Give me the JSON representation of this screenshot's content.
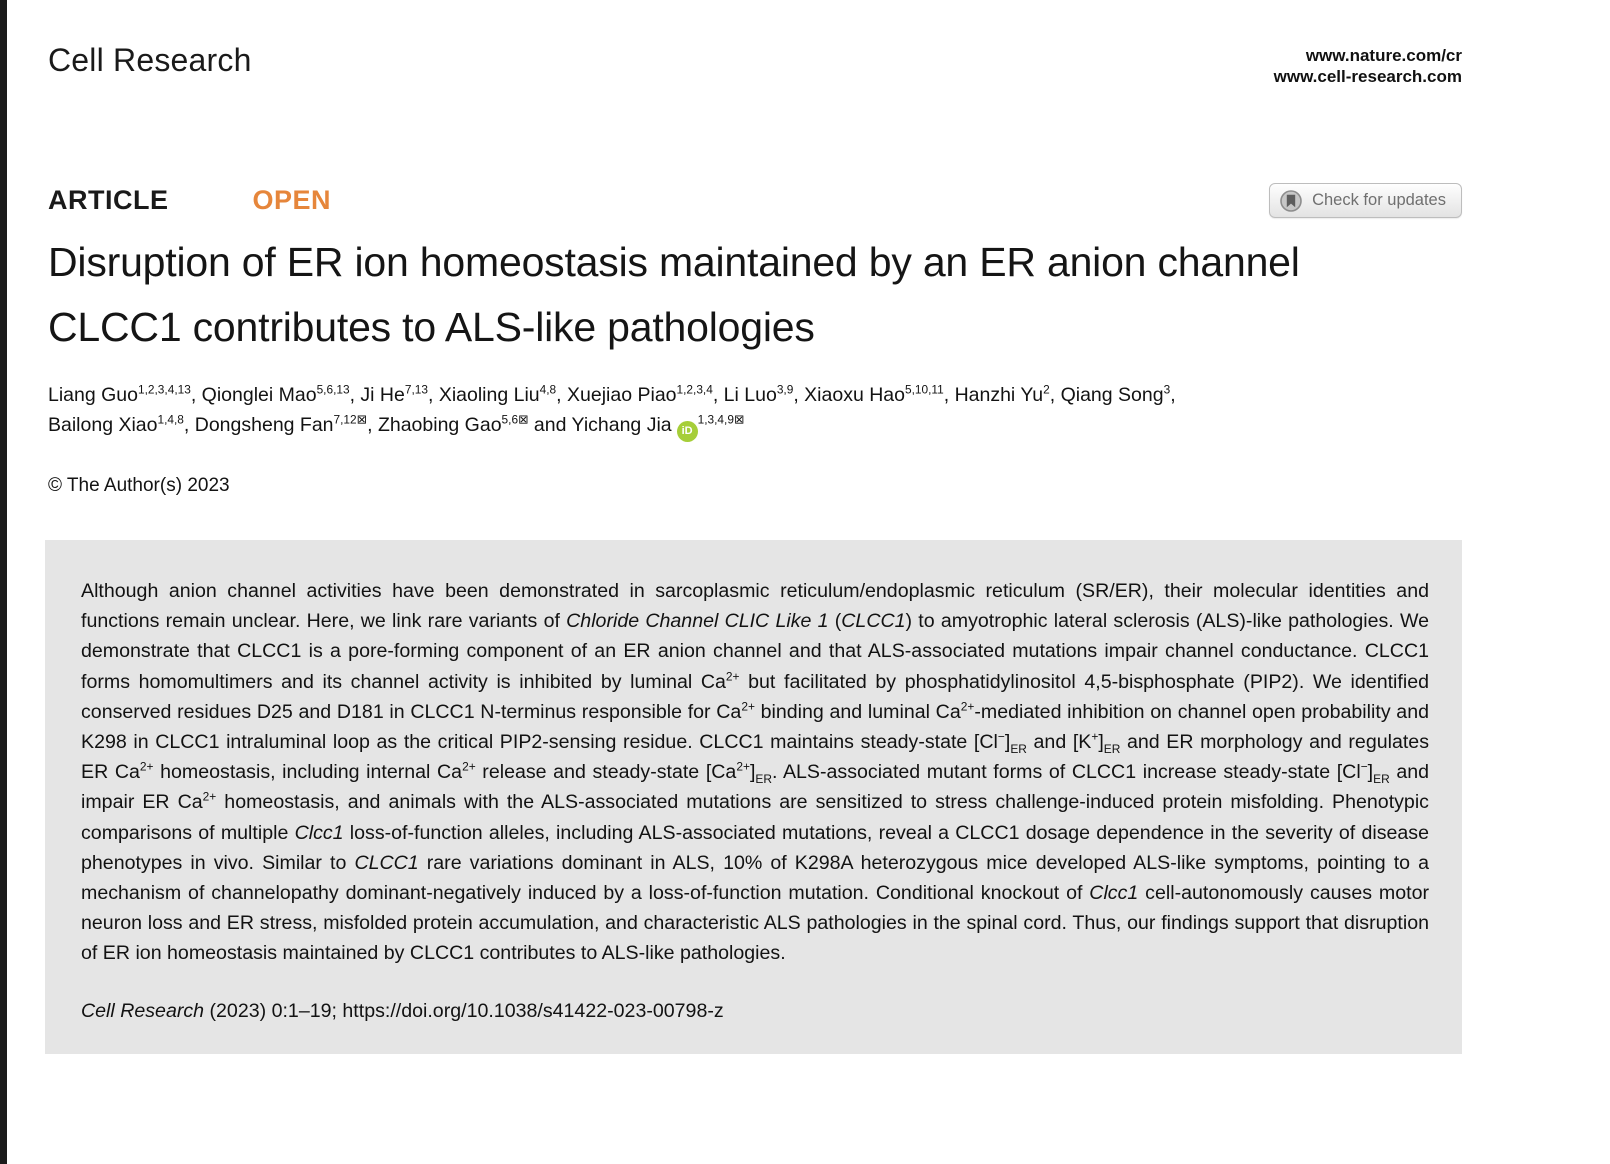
{
  "masthead": {
    "journal": "Cell Research",
    "url_nature": "www.nature.com/cr",
    "url_journal": "www.cell-research.com"
  },
  "labels": {
    "article": "ARTICLE",
    "open": "OPEN",
    "check_updates": "Check for updates"
  },
  "article": {
    "title": "Disruption of ER ion homeostasis maintained by an ER anion channel CLCC1 contributes to ALS-like pathologies",
    "authors_line1": "Liang Guo{sup}1,2,3,4,13{/sup}, Qionglei Mao{sup}5,6,13{/sup}, Ji He{sup}7,13{/sup}, Xiaoling Liu{sup}4,8{/sup}, Xuejiao Piao{sup}1,2,3,4{/sup}, Li Luo{sup}3,9{/sup}, Xiaoxu Hao{sup}5,10,11{/sup}, Hanzhi Yu{sup}2{/sup}, Qiang Song{sup}3{/sup},",
    "authors_line2": "Bailong Xiao{sup}1,4,8{/sup}, Dongsheng Fan{sup}7,12{env}{/sup}, Zhaobing Gao{sup}5,6{env}{/sup} and Yichang Jia{orcid}{sup}1,3,4,9{env}{/sup}",
    "copyright": "© The Author(s) 2023"
  },
  "abstract": {
    "text": "Although anion channel activities have been demonstrated in sarcoplasmic reticulum/endoplasmic reticulum (SR/ER), their molecular identities and functions remain unclear. Here, we link rare variants of {i}Chloride Channel CLIC Like 1{/i} ({i}CLCC1{/i}) to amyotrophic lateral sclerosis (ALS)-like pathologies. We demonstrate that CLCC1 is a pore-forming component of an ER anion channel and that ALS-associated mutations impair channel conductance. CLCC1 forms homomultimers and its channel activity is inhibited by luminal Ca{sup}2+{/sup} but facilitated by phosphatidylinositol 4,5-bisphosphate (PIP2). We identified conserved residues D25 and D181 in CLCC1 N-terminus responsible for Ca{sup}2+{/sup} binding and luminal Ca{sup}2+{/sup}-mediated inhibition on channel open probability and K298 in CLCC1 intraluminal loop as the critical PIP2-sensing residue. CLCC1 maintains steady-state [Cl{sup}−{/sup}]{sub}ER{/sub} and [K{sup}+{/sup}]{sub}ER{/sub} and ER morphology and regulates ER Ca{sup}2+{/sup} homeostasis, including internal Ca{sup}2+{/sup} release and steady-state [Ca{sup}2+{/sup}]{sub}ER{/sub}. ALS-associated mutant forms of CLCC1 increase steady-state [Cl{sup}−{/sup}]{sub}ER{/sub} and impair ER Ca{sup}2+{/sup} homeostasis, and animals with the ALS-associated mutations are sensitized to stress challenge-induced protein misfolding. Phenotypic comparisons of multiple {i}Clcc1{/i} loss-of-function alleles, including ALS-associated mutations, reveal a CLCC1 dosage dependence in the severity of disease phenotypes in vivo. Similar to {i}CLCC1{/i} rare variations dominant in ALS, 10% of K298A heterozygous mice developed ALS-like symptoms, pointing to a mechanism of channelopathy dominant-negatively induced by a loss-of-function mutation. Conditional knockout of {i}Clcc1{/i} cell-autonomously causes motor neuron loss and ER stress, misfolded protein accumulation, and characteristic ALS pathologies in the spinal cord. Thus, our findings support that disruption of ER ion homeostasis maintained by CLCC1 contributes to ALS-like pathologies."
  },
  "citation": {
    "text": "{i}Cell Research{/i} (2023) 0:1–19; https://doi.org/10.1038/s41422-023-00798-z"
  },
  "icons": {
    "check_updates": "crossmark-bookmark-circle",
    "corresponding_author_envelope": "⊠",
    "orcid_badge": "iD"
  },
  "colors": {
    "open_orange": "#E6863B",
    "abstract_bg": "#E5E5E5",
    "orcid_green": "#A6CE39",
    "left_strip": "#1b1b1b"
  }
}
